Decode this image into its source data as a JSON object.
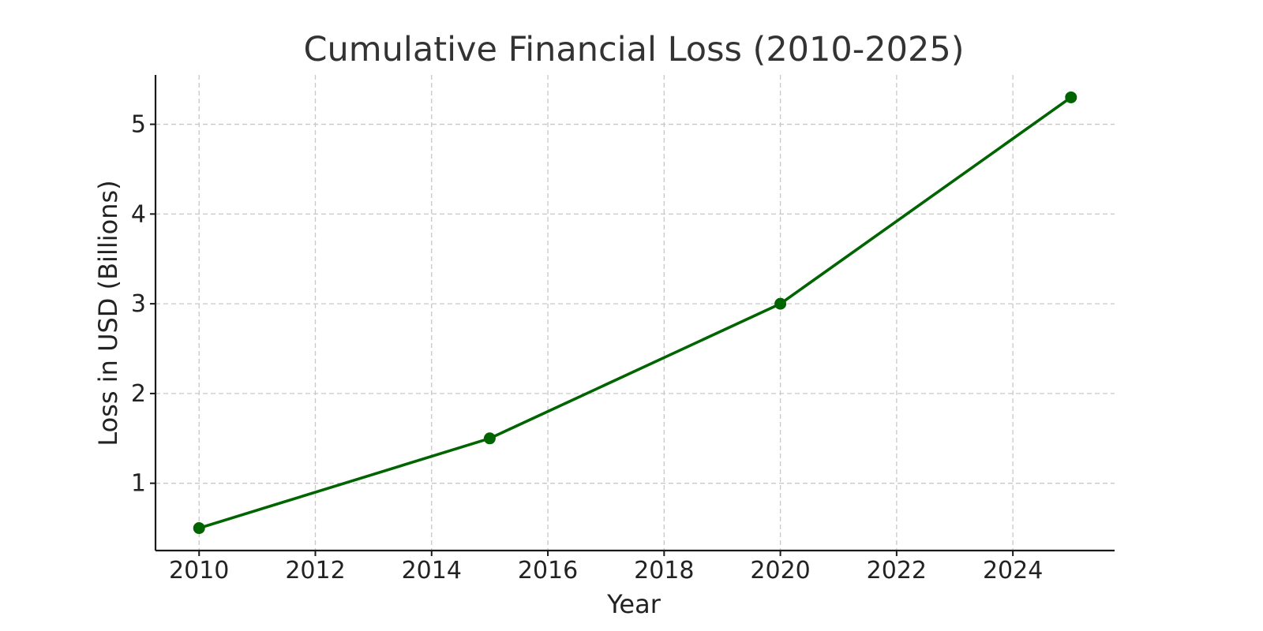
{
  "chart_data": {
    "type": "line",
    "title": "Cumulative Financial Loss (2010-2025)",
    "xlabel": "Year",
    "ylabel": "Loss in USD (Billions)",
    "xlim": [
      2009.25,
      2025.75
    ],
    "ylim": [
      0.25,
      5.55
    ],
    "x_ticks": [
      2010,
      2012,
      2014,
      2016,
      2018,
      2020,
      2022,
      2024
    ],
    "y_ticks": [
      1,
      2,
      3,
      4,
      5
    ],
    "grid": true,
    "line_color": "#006400",
    "series": [
      {
        "x": [
          2010,
          2015,
          2020,
          2025
        ],
        "y": [
          0.5,
          1.5,
          3.0,
          5.3
        ]
      }
    ]
  }
}
